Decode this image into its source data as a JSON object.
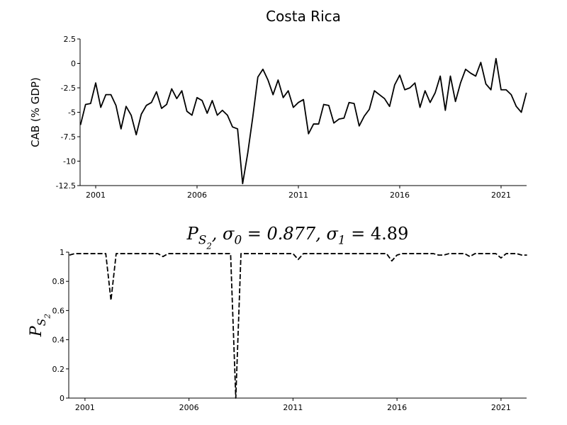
{
  "chart_data": [
    {
      "type": "line",
      "title": "Costa Rica",
      "ylabel": "CAB (% GDP)",
      "x": [
        2000.25,
        2000.5,
        2000.75,
        2001,
        2001.25,
        2001.5,
        2001.75,
        2002,
        2002.25,
        2002.5,
        2002.75,
        2003,
        2003.25,
        2003.5,
        2003.75,
        2004,
        2004.25,
        2004.5,
        2004.75,
        2005,
        2005.25,
        2005.5,
        2005.75,
        2006,
        2006.25,
        2006.5,
        2006.75,
        2007,
        2007.25,
        2007.5,
        2007.75,
        2008,
        2008.25,
        2008.5,
        2008.75,
        2009,
        2009.25,
        2009.5,
        2009.75,
        2010,
        2010.25,
        2010.5,
        2010.75,
        2011,
        2011.25,
        2011.5,
        2011.75,
        2012,
        2012.25,
        2012.5,
        2012.75,
        2013,
        2013.25,
        2013.5,
        2013.75,
        2014,
        2014.25,
        2014.5,
        2014.75,
        2015,
        2015.25,
        2015.5,
        2015.75,
        2016,
        2016.25,
        2016.5,
        2016.75,
        2017,
        2017.25,
        2017.5,
        2017.75,
        2018,
        2018.25,
        2018.5,
        2018.75,
        2019,
        2019.25,
        2019.5,
        2019.75,
        2020,
        2020.25,
        2020.5,
        2020.75,
        2021,
        2021.25,
        2021.5,
        2021.75,
        2022,
        2022.25
      ],
      "series": [
        {
          "color": "#000000",
          "linestyle": "solid",
          "values": [
            -6.3,
            -4.2,
            -4.1,
            -2.0,
            -4.5,
            -3.2,
            -3.2,
            -4.3,
            -6.7,
            -4.4,
            -5.3,
            -7.3,
            -5.2,
            -4.3,
            -4.0,
            -2.9,
            -4.6,
            -4.2,
            -2.6,
            -3.6,
            -2.8,
            -4.9,
            -5.3,
            -3.5,
            -3.8,
            -5.1,
            -3.8,
            -5.3,
            -4.8,
            -5.3,
            -6.5,
            -6.7,
            -12.3,
            -9.2,
            -5.5,
            -1.4,
            -0.6,
            -1.7,
            -3.2,
            -1.7,
            -3.5,
            -2.8,
            -4.5,
            -4.0,
            -3.7,
            -7.2,
            -6.2,
            -6.2,
            -4.2,
            -4.3,
            -6.1,
            -5.7,
            -5.6,
            -4.0,
            -4.1,
            -6.4,
            -5.4,
            -4.7,
            -2.8,
            -3.2,
            -3.6,
            -4.4,
            -2.2,
            -1.2,
            -2.7,
            -2.5,
            -2.0,
            -4.5,
            -2.8,
            -4.0,
            -3.0,
            -1.3,
            -4.8,
            -1.3,
            -3.9,
            -2.0,
            -0.6,
            -1.0,
            -1.3,
            0.1,
            -2.1,
            -2.7,
            0.5,
            -2.7,
            -2.7,
            -3.2,
            -4.4,
            -5.0,
            -3.0
          ]
        }
      ],
      "xlim": [
        2000.23,
        2022.26
      ],
      "xticks": [
        2001,
        2006,
        2011,
        2016,
        2021
      ],
      "ylim": [
        -12.5,
        2.5
      ],
      "yticks": [
        2.5,
        0,
        -2.5,
        -5,
        -7.5,
        -10,
        -12.5
      ]
    },
    {
      "type": "line",
      "title": [
        "P",
        "S",
        "2",
        ", σ",
        "0",
        " = 0.877, σ",
        "1",
        " = 4.89"
      ],
      "ylabel": [
        "P",
        "S",
        "2"
      ],
      "x": [
        2000.25,
        2000.5,
        2000.75,
        2001,
        2001.25,
        2001.5,
        2001.75,
        2002,
        2002.25,
        2002.5,
        2002.75,
        2003,
        2003.25,
        2003.5,
        2003.75,
        2004,
        2004.25,
        2004.5,
        2004.75,
        2005,
        2005.25,
        2005.5,
        2005.75,
        2006,
        2006.25,
        2006.5,
        2006.75,
        2007,
        2007.25,
        2007.5,
        2007.75,
        2008,
        2008.25,
        2008.5,
        2008.75,
        2009,
        2009.25,
        2009.5,
        2009.75,
        2010,
        2010.25,
        2010.5,
        2010.75,
        2011,
        2011.25,
        2011.5,
        2011.75,
        2012,
        2012.25,
        2012.5,
        2012.75,
        2013,
        2013.25,
        2013.5,
        2013.75,
        2014,
        2014.25,
        2014.5,
        2014.75,
        2015,
        2015.25,
        2015.5,
        2015.75,
        2016,
        2016.25,
        2016.5,
        2016.75,
        2017,
        2017.25,
        2017.5,
        2017.75,
        2018,
        2018.25,
        2018.5,
        2018.75,
        2019,
        2019.25,
        2019.5,
        2019.75,
        2020,
        2020.25,
        2020.5,
        2020.75,
        2021,
        2021.25,
        2021.5,
        2021.75,
        2022,
        2022.25
      ],
      "series": [
        {
          "color": "#000000",
          "linestyle": "dashed",
          "values": [
            0.98,
            0.99,
            0.99,
            0.99,
            0.99,
            0.99,
            0.99,
            0.99,
            0.67,
            0.99,
            0.99,
            0.99,
            0.99,
            0.99,
            0.99,
            0.99,
            0.99,
            0.99,
            0.97,
            0.99,
            0.99,
            0.99,
            0.99,
            0.99,
            0.99,
            0.99,
            0.99,
            0.99,
            0.99,
            0.99,
            0.99,
            0.99,
            0.0,
            0.99,
            0.99,
            0.99,
            0.99,
            0.99,
            0.99,
            0.99,
            0.99,
            0.99,
            0.99,
            0.99,
            0.95,
            0.99,
            0.99,
            0.99,
            0.99,
            0.99,
            0.99,
            0.99,
            0.99,
            0.99,
            0.99,
            0.99,
            0.99,
            0.99,
            0.99,
            0.99,
            0.99,
            0.99,
            0.94,
            0.98,
            0.99,
            0.99,
            0.99,
            0.99,
            0.99,
            0.99,
            0.99,
            0.98,
            0.98,
            0.99,
            0.99,
            0.99,
            0.99,
            0.97,
            0.99,
            0.99,
            0.99,
            0.99,
            0.99,
            0.96,
            0.99,
            0.99,
            0.99,
            0.98,
            0.98
          ]
        }
      ],
      "xlim": [
        2000.22,
        2022.23
      ],
      "xticks": [
        2001,
        2006,
        2011,
        2016,
        2021
      ],
      "ylim": [
        0,
        1
      ],
      "yticks": [
        0,
        0.2,
        0.4,
        0.6,
        0.8,
        1
      ]
    }
  ]
}
